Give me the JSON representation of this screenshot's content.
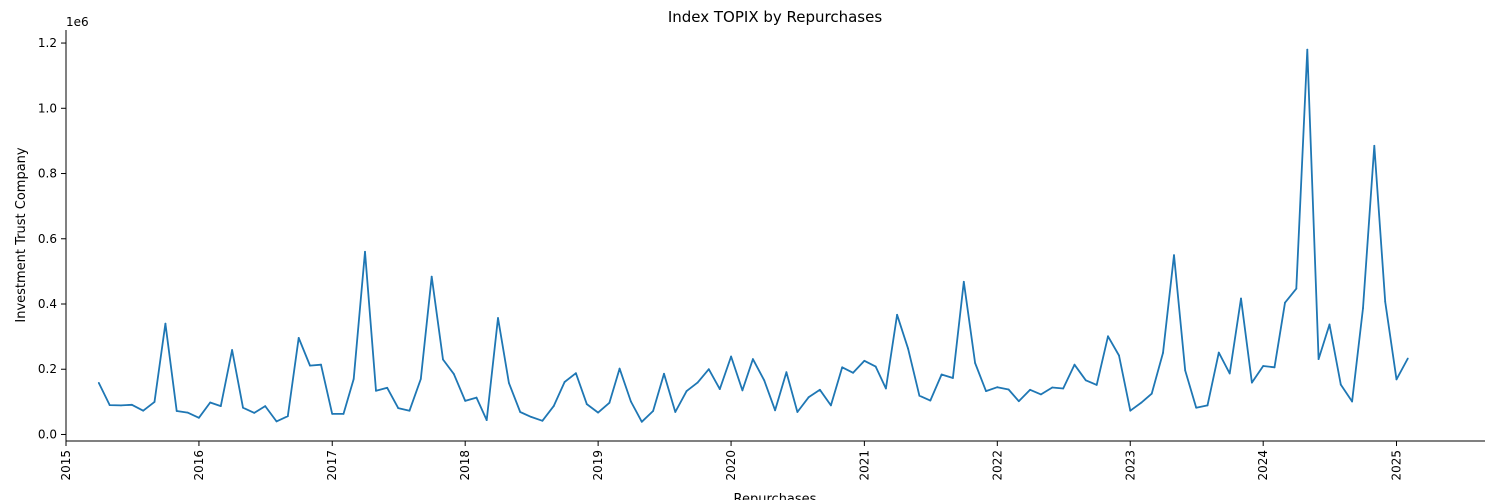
{
  "chart_data": {
    "type": "line",
    "title": "Index TOPIX by Repurchases",
    "xlabel": "Repurchases",
    "ylabel": "Investment Trust Company",
    "y_offset_label": "1e6",
    "x_tick_labels": [
      "2015",
      "2016",
      "2017",
      "2018",
      "2019",
      "2020",
      "2021",
      "2022",
      "2023",
      "2024",
      "2025"
    ],
    "y_tick_labels": [
      "0.0",
      "0.2",
      "0.4",
      "0.6",
      "0.8",
      "1.0",
      "1.2"
    ],
    "y_ticks": [
      0,
      0.2,
      0.4,
      0.6,
      0.8,
      1.0,
      1.2
    ],
    "xlim": [
      "2015-01-01",
      "2025-09-01"
    ],
    "ylim": [
      -0.02,
      1.24
    ],
    "grid": false,
    "colors": {
      "line": "#1f77b4",
      "axis": "#000000"
    },
    "series": [
      {
        "x": [
          "2015-04",
          "2015-05",
          "2015-06",
          "2015-07",
          "2015-08",
          "2015-09",
          "2015-10",
          "2015-11",
          "2015-12",
          "2016-01",
          "2016-02",
          "2016-03",
          "2016-04",
          "2016-05",
          "2016-06",
          "2016-07",
          "2016-08",
          "2016-09",
          "2016-10",
          "2016-11",
          "2016-12",
          "2017-01",
          "2017-02",
          "2017-03",
          "2017-04",
          "2017-05",
          "2017-06",
          "2017-07",
          "2017-08",
          "2017-09",
          "2017-10",
          "2017-11",
          "2017-12",
          "2018-01",
          "2018-02",
          "2018-03",
          "2018-04",
          "2018-05",
          "2018-06",
          "2018-07",
          "2018-08",
          "2018-09",
          "2018-10",
          "2018-11",
          "2018-12",
          "2019-01",
          "2019-02",
          "2019-03",
          "2019-04",
          "2019-05",
          "2019-06",
          "2019-07",
          "2019-08",
          "2019-09",
          "2019-10",
          "2019-11",
          "2019-12",
          "2020-01",
          "2020-02",
          "2020-03",
          "2020-04",
          "2020-05",
          "2020-06",
          "2020-07",
          "2020-08",
          "2020-09",
          "2020-10",
          "2020-11",
          "2020-12",
          "2021-01",
          "2021-02",
          "2021-03",
          "2021-04",
          "2021-05",
          "2021-06",
          "2021-07",
          "2021-08",
          "2021-09",
          "2021-10",
          "2021-11",
          "2021-12",
          "2022-01",
          "2022-02",
          "2022-03",
          "2022-04",
          "2022-05",
          "2022-06",
          "2022-07",
          "2022-08",
          "2022-09",
          "2022-10",
          "2022-11",
          "2022-12",
          "2023-01",
          "2023-02",
          "2023-03",
          "2023-04",
          "2023-05",
          "2023-06",
          "2023-07",
          "2023-08",
          "2023-09",
          "2023-10",
          "2023-11",
          "2023-12",
          "2024-01",
          "2024-02",
          "2024-03",
          "2024-04",
          "2024-05",
          "2024-06",
          "2024-07",
          "2024-08",
          "2024-09",
          "2024-10",
          "2024-11",
          "2024-12",
          "2025-01",
          "2025-02"
        ],
        "y": [
          0.158,
          0.09,
          0.089,
          0.091,
          0.073,
          0.1,
          0.34,
          0.072,
          0.067,
          0.051,
          0.098,
          0.087,
          0.259,
          0.082,
          0.066,
          0.087,
          0.04,
          0.056,
          0.296,
          0.211,
          0.214,
          0.063,
          0.063,
          0.17,
          0.56,
          0.134,
          0.143,
          0.081,
          0.073,
          0.17,
          0.484,
          0.23,
          0.185,
          0.103,
          0.113,
          0.044,
          0.357,
          0.158,
          0.069,
          0.054,
          0.042,
          0.087,
          0.161,
          0.188,
          0.093,
          0.067,
          0.097,
          0.202,
          0.101,
          0.039,
          0.072,
          0.186,
          0.069,
          0.133,
          0.159,
          0.2,
          0.139,
          0.239,
          0.135,
          0.231,
          0.166,
          0.074,
          0.191,
          0.069,
          0.114,
          0.137,
          0.089,
          0.206,
          0.189,
          0.226,
          0.208,
          0.141,
          0.367,
          0.263,
          0.119,
          0.104,
          0.184,
          0.173,
          0.468,
          0.219,
          0.133,
          0.145,
          0.138,
          0.102,
          0.137,
          0.123,
          0.144,
          0.141,
          0.214,
          0.166,
          0.152,
          0.301,
          0.242,
          0.073,
          0.098,
          0.125,
          0.25,
          0.55,
          0.196,
          0.082,
          0.089,
          0.251,
          0.187,
          0.417,
          0.159,
          0.21,
          0.206,
          0.404,
          0.447,
          1.18,
          0.231,
          0.337,
          0.153,
          0.101,
          0.387,
          0.885,
          0.407,
          0.169,
          0.233
        ]
      }
    ]
  }
}
